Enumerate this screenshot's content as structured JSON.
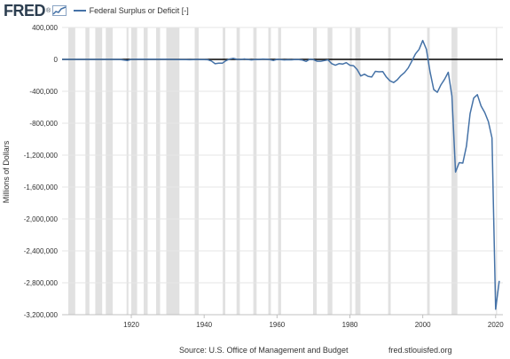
{
  "header": {
    "logo_text": "FRED",
    "logo_mark": "®",
    "legend_label": "Federal Surplus or Deficit [-]",
    "series_color": "#4572a7"
  },
  "footer": {
    "source": "Source: U.S. Office of Management and Budget",
    "site": "fred.stlouisfed.org"
  },
  "chart_data": {
    "type": "line",
    "title": "",
    "xlabel": "",
    "ylabel": "Millions of Dollars",
    "xlim": [
      1901,
      2022
    ],
    "ylim": [
      -3200000,
      400000
    ],
    "x_ticks": [
      "1920",
      "1940",
      "1960",
      "1980",
      "2000",
      "2020"
    ],
    "y_ticks": [
      "400,000",
      "0",
      "-400,000",
      "-800,000",
      "-1,200,000",
      "-1,600,000",
      "-2,000,000",
      "-2,400,000",
      "-2,800,000",
      "-3,200,000"
    ],
    "recession_color": "#e1e1e1",
    "recessions": [
      [
        1902.7,
        1904.6
      ],
      [
        1907.4,
        1908.5
      ],
      [
        1910.1,
        1912.0
      ],
      [
        1913.0,
        1914.9
      ],
      [
        1918.7,
        1919.2
      ],
      [
        1920.0,
        1921.6
      ],
      [
        1923.4,
        1924.5
      ],
      [
        1926.8,
        1927.9
      ],
      [
        1929.6,
        1933.2
      ],
      [
        1937.4,
        1938.5
      ],
      [
        1945.1,
        1945.8
      ],
      [
        1948.9,
        1949.8
      ],
      [
        1953.5,
        1954.4
      ],
      [
        1957.6,
        1958.3
      ],
      [
        1960.3,
        1961.1
      ],
      [
        1969.9,
        1970.9
      ],
      [
        1973.9,
        1975.2
      ],
      [
        1980.0,
        1980.5
      ],
      [
        1981.5,
        1982.9
      ],
      [
        1990.5,
        1991.2
      ],
      [
        2001.2,
        2001.9
      ],
      [
        2007.9,
        2009.5
      ],
      [
        2020.1,
        2020.4
      ]
    ],
    "series": [
      {
        "name": "Federal Surplus or Deficit [-]",
        "x": [
          1901,
          1905,
          1910,
          1915,
          1917,
          1918,
          1919,
          1920,
          1921,
          1925,
          1930,
          1931,
          1932,
          1933,
          1934,
          1935,
          1936,
          1937,
          1938,
          1939,
          1940,
          1941,
          1942,
          1943,
          1944,
          1945,
          1946,
          1947,
          1948,
          1949,
          1950,
          1951,
          1952,
          1953,
          1954,
          1955,
          1956,
          1957,
          1958,
          1959,
          1960,
          1961,
          1962,
          1963,
          1964,
          1965,
          1966,
          1967,
          1968,
          1969,
          1970,
          1971,
          1972,
          1973,
          1974,
          1975,
          1976,
          1977,
          1978,
          1979,
          1980,
          1981,
          1982,
          1983,
          1984,
          1985,
          1986,
          1987,
          1988,
          1989,
          1990,
          1991,
          1992,
          1993,
          1994,
          1995,
          1996,
          1997,
          1998,
          1999,
          2000,
          2001,
          2002,
          2003,
          2004,
          2005,
          2006,
          2007,
          2008,
          2009,
          2010,
          2011,
          2012,
          2013,
          2014,
          2015,
          2016,
          2017,
          2018,
          2019,
          2020,
          2021
        ],
        "y": [
          0,
          0,
          0,
          0,
          -1000,
          -9000,
          -13000,
          0,
          1000,
          1000,
          1000,
          -500,
          -2700,
          -2600,
          -3600,
          -2800,
          -4300,
          -2200,
          -100,
          -2800,
          -2900,
          -4900,
          -20500,
          -54600,
          -47600,
          -47600,
          -15900,
          4000,
          11800,
          600,
          -3100,
          6100,
          -1500,
          -6500,
          -1200,
          -3000,
          3900,
          3400,
          -2800,
          -12800,
          300,
          -3300,
          -7100,
          -4800,
          -5900,
          -1400,
          -3700,
          -8600,
          -25200,
          3200,
          -2800,
          -23000,
          -23400,
          -14900,
          -6100,
          -53200,
          -73700,
          -53700,
          -59200,
          -40700,
          -73800,
          -79000,
          -128000,
          -207800,
          -185400,
          -212300,
          -221200,
          -149700,
          -155200,
          -152600,
          -221000,
          -269200,
          -290300,
          -255100,
          -203200,
          -164000,
          -107400,
          -21900,
          69300,
          125600,
          236200,
          128200,
          -157800,
          -377600,
          -412700,
          -318300,
          -248200,
          -160700,
          -458600,
          -1412700,
          -1294400,
          -1299600,
          -1087000,
          -679800,
          -484600,
          -442000,
          -584700,
          -665800,
          -779100,
          -984400,
          -3131900,
          -2775300
        ]
      }
    ]
  }
}
